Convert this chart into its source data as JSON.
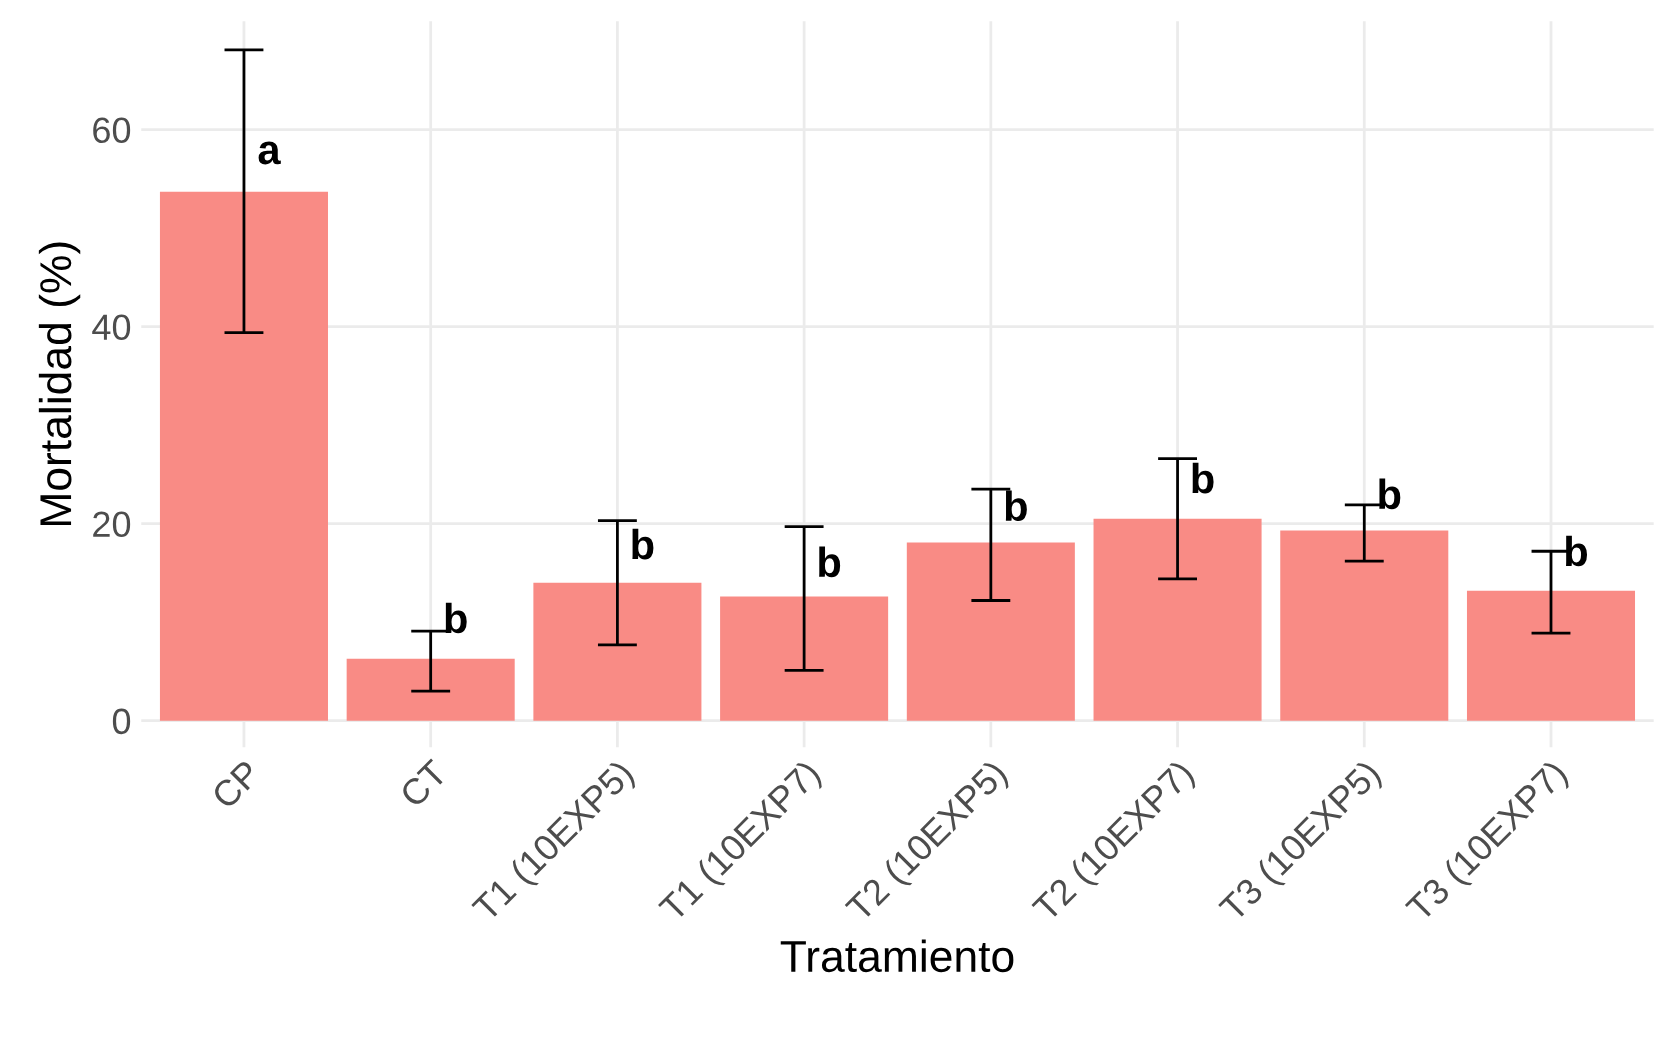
{
  "chart_data": {
    "type": "bar",
    "xlabel": "Tratamiento",
    "ylabel": "Mortalidad (%)",
    "categories": [
      "CP",
      "CT",
      "T1 (10EXP5)",
      "T1 (10EXP7)",
      "T2 (10EXP5)",
      "T2 (10EXP7)",
      "T3 (10EXP5)",
      "T3 (10EXP7)"
    ],
    "values": [
      53.7,
      6.3,
      14.0,
      12.6,
      18.1,
      20.5,
      19.3,
      13.2
    ],
    "errors": [
      [
        39.4,
        68.1
      ],
      [
        3.0,
        9.1
      ],
      [
        7.7,
        20.3
      ],
      [
        5.1,
        19.7
      ],
      [
        12.2,
        23.5
      ],
      [
        14.4,
        26.6
      ],
      [
        16.2,
        21.9
      ],
      [
        8.9,
        17.2
      ]
    ],
    "color": "#f98b85",
    "ylim": [
      -2.7,
      71
    ],
    "yticks": [
      0,
      20,
      40,
      60
    ],
    "grid": true,
    "annotations": [
      {
        "text": "a",
        "x": "CP",
        "y": 57.6
      },
      {
        "text": "b",
        "x": "CT",
        "y": 10.0
      },
      {
        "text": "b",
        "x": "T1 (10EXP5)",
        "y": 17.5
      },
      {
        "text": "b",
        "x": "T1 (10EXP7)",
        "y": 15.7
      },
      {
        "text": "b",
        "x": "T2 (10EXP5)",
        "y": 21.4
      },
      {
        "text": "b",
        "x": "T2 (10EXP7)",
        "y": 24.2
      },
      {
        "text": "b",
        "x": "T3 (10EXP5)",
        "y": 22.6
      },
      {
        "text": "b",
        "x": "T3 (10EXP7)",
        "y": 16.8
      }
    ]
  }
}
